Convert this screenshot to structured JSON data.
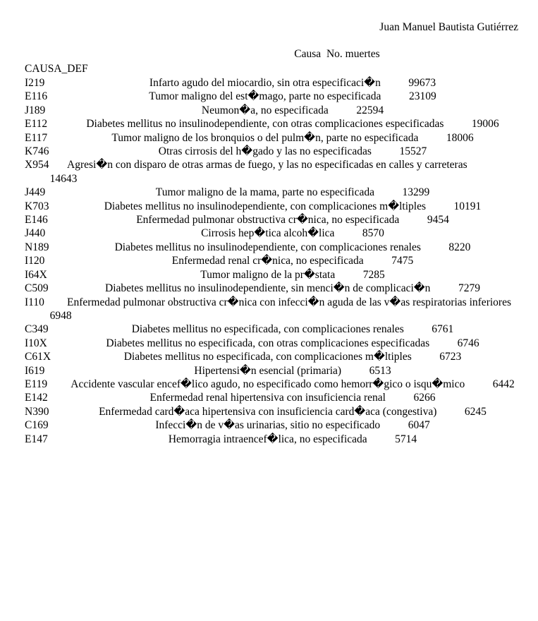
{
  "author": "Juan Manuel Bautista Gutiérrez",
  "table": {
    "header_causa": "Causa",
    "header_muertes": "No. muertes",
    "index_header": "CAUSA_DEF",
    "rows": [
      {
        "code": "I219",
        "cause": "Infarto agudo del miocardio, sin otra especificaci�n",
        "deaths": "99673"
      },
      {
        "code": "E116",
        "cause": "Tumor maligno del est�mago, parte no especificada",
        "deaths": "23109"
      },
      {
        "code": "J189",
        "cause": "Neumon�a, no especificada",
        "deaths": "22594"
      },
      {
        "code": "E112",
        "cause": "Diabetes mellitus no insulinodependiente, con otras complicaciones especificadas",
        "deaths": "19006"
      },
      {
        "code": "E117",
        "cause": "Tumor maligno de los bronquios o del pulm�n, parte no especificada",
        "deaths": "18006"
      },
      {
        "code": "K746",
        "cause": "Otras cirrosis del h�gado y las no especificadas",
        "deaths": "15527"
      },
      {
        "code": "X954",
        "cause": "Agresi�n con disparo de otras armas de fuego, y las no especificadas en calles y carreteras",
        "deaths": "14643"
      },
      {
        "code": "J449",
        "cause": "Tumor maligno de la mama, parte no especificada",
        "deaths": "13299"
      },
      {
        "code": "K703",
        "cause": "Diabetes mellitus no insulinodependiente, con complicaciones m�ltiples",
        "deaths": "10191"
      },
      {
        "code": "E146",
        "cause": "Enfermedad pulmonar obstructiva cr�nica, no especificada",
        "deaths": "9454"
      },
      {
        "code": "J440",
        "cause": "Cirrosis hep�tica alcoh�lica",
        "deaths": "8570"
      },
      {
        "code": "N189",
        "cause": "Diabetes mellitus no insulinodependiente, con complicaciones renales",
        "deaths": "8220"
      },
      {
        "code": "I120",
        "cause": "Enfermedad renal cr�nica, no especificada",
        "deaths": "7475"
      },
      {
        "code": "I64X",
        "cause": "Tumor maligno de la pr�stata",
        "deaths": "7285"
      },
      {
        "code": "C509",
        "cause": "Diabetes mellitus no insulinodependiente, sin menci�n de complicaci�n",
        "deaths": "7279"
      },
      {
        "code": "I110",
        "cause": "Enfermedad pulmonar obstructiva cr�nica con infecci�n aguda de las v�as respiratorias inferiores",
        "deaths": "6948"
      },
      {
        "code": "C349",
        "cause": "Diabetes mellitus no especificada, con complicaciones renales",
        "deaths": "6761"
      },
      {
        "code": "I10X",
        "cause": "Diabetes mellitus no especificada, con otras complicaciones especificadas",
        "deaths": "6746"
      },
      {
        "code": "C61X",
        "cause": "Diabetes mellitus no especificada, con complicaciones m�ltiples",
        "deaths": "6723"
      },
      {
        "code": "I619",
        "cause": "Hipertensi�n esencial (primaria)",
        "deaths": "6513"
      },
      {
        "code": "E119",
        "cause": "Accidente vascular encef�lico agudo, no especificado como hemorr�gico o isqu�mico",
        "deaths": "6442"
      },
      {
        "code": "E142",
        "cause": "Enfermedad renal hipertensiva con insuficiencia renal",
        "deaths": "6266"
      },
      {
        "code": "N390",
        "cause": "Enfermedad card�aca hipertensiva con insuficiencia card�aca (congestiva)",
        "deaths": "6245"
      },
      {
        "code": "C169",
        "cause": "Infecci�n de v�as urinarias, sitio no especificado",
        "deaths": "6047"
      },
      {
        "code": "E147",
        "cause": "Hemorragia intraencef�lica, no especificada",
        "deaths": "5714"
      }
    ]
  }
}
